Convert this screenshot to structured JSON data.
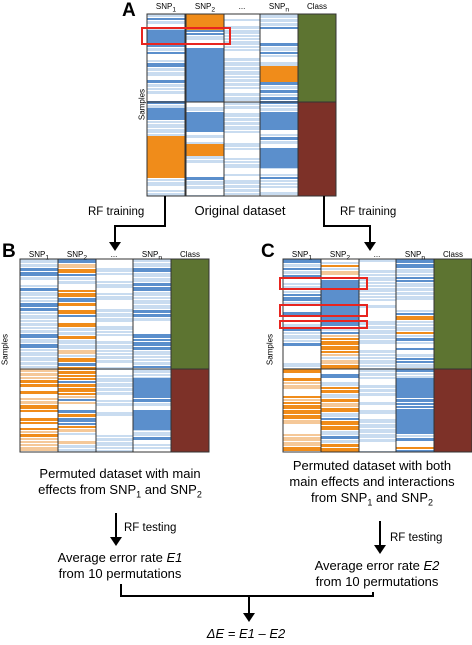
{
  "panels": {
    "A": {
      "letter": "A",
      "cols": [
        "SNP1",
        "SNP2",
        "...",
        "SNPn",
        "Class"
      ],
      "rows_label": "Samples"
    },
    "B": {
      "letter": "B",
      "cols": [
        "SNP1",
        "SNP2",
        "...",
        "SNPn",
        "Class"
      ],
      "rows_label": "Samples"
    },
    "C": {
      "letter": "C",
      "cols": [
        "SNP1",
        "SNP2",
        "...",
        "SNPn",
        "Class"
      ],
      "rows_label": "Samples"
    }
  },
  "labels": {
    "original": "Original dataset",
    "rf_training_left": "RF training",
    "rf_training_right": "RF training",
    "b_caption_1": "Permuted dataset with main",
    "b_caption_2": "effects from SNP1 and SNP2",
    "c_caption_1": "Permuted dataset with both",
    "c_caption_2": "main effects and interactions",
    "c_caption_3": "from SNP1 and SNP2",
    "rf_testing_left": "RF testing",
    "rf_testing_right": "RF testing",
    "avg_left_1": "Average error rate E1",
    "avg_left_2": "from 10 permutations",
    "avg_right_1": "Average error rate E2",
    "avg_right_2": "from 10 permutations",
    "delta": "ΔE = E1 – E2"
  },
  "colors": {
    "blue": "#5b8fcc",
    "light_blue": "#c9dcf0",
    "orange": "#f08c1a",
    "light_orange": "#f5c898",
    "green": "#5d7431",
    "dark_red": "#7d3128",
    "highlight": "#e8251f"
  }
}
